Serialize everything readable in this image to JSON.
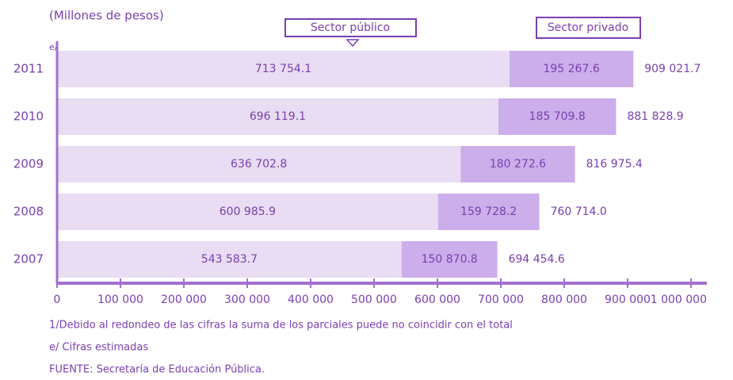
{
  "chart_data": {
    "type": "stacked-bar-horizontal",
    "subtitle": "(Millones de pesos)",
    "categories": [
      "2011",
      "2010",
      "2009",
      "2008",
      "2007"
    ],
    "category_note": "e/",
    "series": [
      {
        "name": "Sector público",
        "color": "#e8ddf3",
        "values": [
          713754.1,
          696119.1,
          636702.8,
          600985.9,
          543583.7
        ],
        "value_labels": [
          "713 754.1",
          "696 119.1",
          "636 702.8",
          "600 985.9",
          "543 583.7"
        ]
      },
      {
        "name": "Sector privado",
        "color": "#cbaeea",
        "values": [
          195267.6,
          185709.8,
          180272.6,
          159728.2,
          150870.8
        ],
        "value_labels": [
          "195 267.6",
          "185  709.8",
          "180 272.6",
          "159 728.2",
          "150 870.8"
        ]
      }
    ],
    "totals": [
      909021.7,
      881828.9,
      816975.4,
      760714.0,
      694454.6
    ],
    "total_labels": [
      "909 021.7",
      "881 828.9",
      "816 975.4",
      "760 714.0",
      "694 454.6"
    ],
    "xlim": [
      0,
      1000000
    ],
    "xticks": [
      0,
      {
        "value": 100000,
        "label": "100 000"
      },
      {
        "value": 200000,
        "label": "200 000"
      },
      {
        "value": 300000,
        "label": "300 000"
      },
      {
        "value": 400000,
        "label": "400 000"
      },
      {
        "value": 500000,
        "label": "500 000"
      },
      {
        "value": 600000,
        "label": "600 000"
      },
      {
        "value": 700000,
        "label": "700 000"
      },
      {
        "value": 800000,
        "label": "800 000"
      },
      {
        "value": 900000,
        "label": "900 000"
      },
      {
        "value": 1000000,
        "label": "1 000 000"
      }
    ],
    "footnotes": [
      "1/Debido al redondeo de las cifras la suma de los parciales puede no coincidir con el total",
      "e/  Cifras estimadas",
      "FUENTE: Secretaría de Educación Pública."
    ]
  }
}
